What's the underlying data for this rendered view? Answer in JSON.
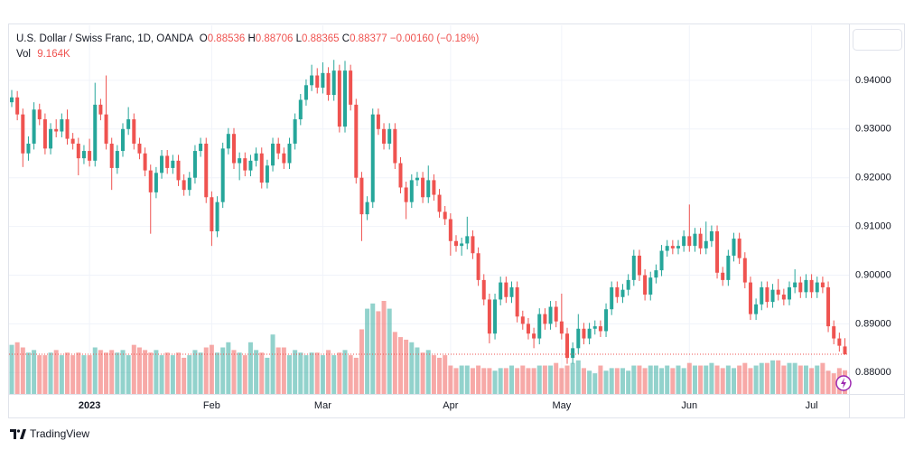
{
  "chart_data": {
    "type": "candlestick",
    "title": "U.S. Dollar / Swiss Franc, 1D, OANDA",
    "legend": {
      "open_label": "O",
      "open": 0.88536,
      "high_label": "H",
      "high": 0.88706,
      "low_label": "L",
      "low": 0.88365,
      "close_label": "C",
      "close": 0.88377,
      "change": {
        "value": -0.0016,
        "label": "−0.00160"
      },
      "change_percent": {
        "value": -0.18,
        "label": "(−0.18%)"
      },
      "volume_label": "Vol",
      "volume": {
        "value": 9.164,
        "label": "9.164K"
      }
    },
    "categories": [
      null,
      null,
      null,
      null,
      null,
      null,
      null,
      null,
      null,
      null,
      null,
      null,
      null,
      null,
      "2023",
      null,
      null,
      null,
      null,
      null,
      null,
      null,
      null,
      null,
      null,
      null,
      null,
      null,
      null,
      null,
      null,
      null,
      null,
      null,
      null,
      null,
      "Feb",
      null,
      null,
      null,
      null,
      null,
      null,
      null,
      null,
      null,
      null,
      null,
      null,
      null,
      null,
      null,
      null,
      null,
      null,
      null,
      "Mar",
      null,
      null,
      null,
      null,
      null,
      null,
      null,
      null,
      null,
      null,
      null,
      null,
      null,
      null,
      null,
      null,
      null,
      null,
      null,
      null,
      null,
      null,
      "Apr",
      null,
      null,
      null,
      null,
      null,
      null,
      null,
      null,
      null,
      null,
      null,
      null,
      null,
      null,
      null,
      null,
      null,
      null,
      null,
      "May",
      null,
      null,
      null,
      null,
      null,
      null,
      null,
      null,
      null,
      null,
      null,
      null,
      null,
      null,
      null,
      null,
      null,
      null,
      null,
      null,
      null,
      null,
      "Jun",
      null,
      null,
      null,
      null,
      null,
      null,
      null,
      null,
      null,
      null,
      null,
      null,
      null,
      null,
      null,
      null,
      null,
      null,
      null,
      null,
      null,
      "Jul",
      null,
      null,
      null,
      null,
      null,
      null
    ],
    "open": [
      0.9355,
      0.9365,
      0.933,
      0.925,
      0.927,
      0.934,
      0.932,
      0.926,
      0.93,
      0.9295,
      0.932,
      0.928,
      0.927,
      0.924,
      0.9255,
      0.9235,
      0.935,
      0.933,
      0.927,
      0.922,
      0.9255,
      0.93,
      0.932,
      0.927,
      0.925,
      0.9215,
      0.917,
      0.921,
      0.9245,
      0.922,
      0.9235,
      0.9195,
      0.9175,
      0.92,
      0.9255,
      0.927,
      0.916,
      0.909,
      0.915,
      0.926,
      0.929,
      0.923,
      0.924,
      0.9215,
      0.9235,
      0.925,
      0.919,
      0.9225,
      0.927,
      0.925,
      0.923,
      0.927,
      0.932,
      0.936,
      0.939,
      0.941,
      0.9385,
      0.9415,
      0.937,
      0.942,
      0.9305,
      0.942,
      0.935,
      0.92,
      0.9125,
      0.915,
      0.933,
      0.93,
      0.927,
      0.93,
      0.923,
      0.918,
      0.915,
      0.9195,
      0.92,
      0.916,
      0.9195,
      0.9165,
      0.913,
      0.9115,
      0.907,
      0.906,
      0.9065,
      0.908,
      0.9045,
      0.899,
      0.895,
      0.888,
      0.895,
      0.8985,
      0.8955,
      0.8975,
      0.8915,
      0.89,
      0.888,
      0.887,
      0.892,
      0.89,
      0.8935,
      0.8905,
      0.888,
      0.883,
      0.885,
      0.889,
      0.887,
      0.889,
      0.8895,
      0.8885,
      0.893,
      0.8975,
      0.8955,
      0.897,
      0.899,
      0.904,
      0.9,
      0.896,
      0.8995,
      0.901,
      0.905,
      0.906,
      0.9055,
      0.906,
      0.908,
      0.906,
      0.9085,
      0.9055,
      0.907,
      0.909,
      0.9005,
      0.899,
      0.904,
      0.9075,
      0.9035,
      0.8985,
      0.892,
      0.894,
      0.8975,
      0.8945,
      0.897,
      0.896,
      0.895,
      0.8975,
      0.8985,
      0.8965,
      0.899,
      0.8965,
      0.8985,
      0.8975,
      0.8895,
      0.887,
      0.88536
    ],
    "high": [
      0.938,
      0.9378,
      0.9342,
      0.9285,
      0.9355,
      0.9352,
      0.9332,
      0.9312,
      0.932,
      0.9332,
      0.934,
      0.9292,
      0.9282,
      0.9267,
      0.928,
      0.9395,
      0.9362,
      0.941,
      0.9282,
      0.9267,
      0.9312,
      0.9345,
      0.9332,
      0.9282,
      0.9262,
      0.9227,
      0.9222,
      0.9257,
      0.9257,
      0.9247,
      0.9247,
      0.9207,
      0.9212,
      0.9267,
      0.9282,
      0.9282,
      0.9172,
      0.9162,
      0.9272,
      0.9302,
      0.9302,
      0.9252,
      0.9252,
      0.9247,
      0.9262,
      0.9262,
      0.9237,
      0.9282,
      0.9282,
      0.9262,
      0.9282,
      0.9332,
      0.9372,
      0.9402,
      0.9432,
      0.9425,
      0.9437,
      0.9427,
      0.9442,
      0.9432,
      0.944,
      0.9432,
      0.9362,
      0.9212,
      0.9162,
      0.9342,
      0.9342,
      0.9312,
      0.9312,
      0.9312,
      0.9242,
      0.9192,
      0.9207,
      0.9212,
      0.9212,
      0.9225,
      0.9207,
      0.9177,
      0.9142,
      0.9127,
      0.9082,
      0.9077,
      0.912,
      0.9092,
      0.9057,
      0.9002,
      0.8962,
      0.8962,
      0.8997,
      0.8997,
      0.8987,
      0.8987,
      0.8927,
      0.8912,
      0.8892,
      0.8932,
      0.8932,
      0.8947,
      0.8947,
      0.8962,
      0.8892,
      0.8862,
      0.892,
      0.8902,
      0.8902,
      0.8907,
      0.8907,
      0.8942,
      0.8987,
      0.8987,
      0.8982,
      0.9002,
      0.9052,
      0.9052,
      0.9012,
      0.9007,
      0.9022,
      0.9062,
      0.9072,
      0.9072,
      0.9072,
      0.9092,
      0.9145,
      0.9097,
      0.9097,
      0.911,
      0.9102,
      0.9102,
      0.9017,
      0.9052,
      0.9087,
      0.9087,
      0.9047,
      0.8997,
      0.8952,
      0.8987,
      0.8987,
      0.8982,
      0.8992,
      0.8972,
      0.8987,
      0.9012,
      0.8997,
      0.9002,
      0.9002,
      0.8997,
      0.8997,
      0.8987,
      0.8907,
      0.8882,
      0.88706
    ],
    "low": [
      0.9345,
      0.9318,
      0.9222,
      0.9235,
      0.9258,
      0.9308,
      0.9248,
      0.9248,
      0.9283,
      0.9283,
      0.9268,
      0.9258,
      0.9205,
      0.9228,
      0.9223,
      0.9223,
      0.9318,
      0.9258,
      0.9175,
      0.9208,
      0.9243,
      0.9288,
      0.9258,
      0.9238,
      0.9203,
      0.9085,
      0.9158,
      0.9198,
      0.9208,
      0.9208,
      0.9183,
      0.9163,
      0.9163,
      0.9188,
      0.9243,
      0.9148,
      0.906,
      0.9078,
      0.9138,
      0.9248,
      0.9218,
      0.9195,
      0.9203,
      0.9203,
      0.9223,
      0.9178,
      0.9178,
      0.9213,
      0.9238,
      0.9218,
      0.9218,
      0.9258,
      0.9308,
      0.9348,
      0.9378,
      0.9373,
      0.9373,
      0.9358,
      0.9358,
      0.9293,
      0.9293,
      0.9338,
      0.9188,
      0.907,
      0.9113,
      0.9138,
      0.9288,
      0.9258,
      0.9258,
      0.9218,
      0.9168,
      0.9115,
      0.9138,
      0.9183,
      0.9148,
      0.9148,
      0.9153,
      0.9118,
      0.9103,
      0.904,
      0.9048,
      0.904,
      0.9053,
      0.9033,
      0.8978,
      0.8938,
      0.886,
      0.8868,
      0.8938,
      0.8943,
      0.8943,
      0.8903,
      0.8888,
      0.8868,
      0.885,
      0.8858,
      0.8888,
      0.8888,
      0.8893,
      0.8868,
      0.8818,
      0.8818,
      0.8838,
      0.8858,
      0.8858,
      0.8878,
      0.8873,
      0.8873,
      0.8918,
      0.8943,
      0.8943,
      0.8958,
      0.8978,
      0.8988,
      0.8948,
      0.8948,
      0.8983,
      0.8998,
      0.9038,
      0.9043,
      0.9043,
      0.9048,
      0.9048,
      0.9048,
      0.9043,
      0.9043,
      0.9058,
      0.8993,
      0.8978,
      0.8978,
      0.9028,
      0.9023,
      0.8973,
      0.8908,
      0.8908,
      0.8928,
      0.8933,
      0.8933,
      0.8948,
      0.8938,
      0.8938,
      0.8963,
      0.8953,
      0.8953,
      0.8953,
      0.8953,
      0.8963,
      0.8883,
      0.8858,
      0.8843,
      0.88365
    ],
    "close": [
      0.9365,
      0.933,
      0.925,
      0.927,
      0.934,
      0.932,
      0.926,
      0.93,
      0.9295,
      0.932,
      0.928,
      0.927,
      0.924,
      0.9255,
      0.9235,
      0.935,
      0.933,
      0.927,
      0.922,
      0.9255,
      0.93,
      0.932,
      0.927,
      0.925,
      0.9215,
      0.917,
      0.921,
      0.9245,
      0.922,
      0.9235,
      0.9195,
      0.9175,
      0.92,
      0.9255,
      0.927,
      0.916,
      0.909,
      0.915,
      0.926,
      0.929,
      0.923,
      0.924,
      0.9215,
      0.9235,
      0.925,
      0.919,
      0.9225,
      0.927,
      0.925,
      0.923,
      0.927,
      0.932,
      0.936,
      0.939,
      0.941,
      0.9385,
      0.9415,
      0.937,
      0.942,
      0.9305,
      0.942,
      0.935,
      0.92,
      0.9125,
      0.915,
      0.933,
      0.93,
      0.927,
      0.93,
      0.923,
      0.918,
      0.915,
      0.9195,
      0.92,
      0.916,
      0.9195,
      0.9165,
      0.913,
      0.9115,
      0.907,
      0.906,
      0.9065,
      0.908,
      0.9045,
      0.899,
      0.895,
      0.888,
      0.895,
      0.8985,
      0.8955,
      0.8975,
      0.8915,
      0.89,
      0.888,
      0.887,
      0.892,
      0.89,
      0.8935,
      0.8905,
      0.888,
      0.883,
      0.885,
      0.889,
      0.887,
      0.889,
      0.8895,
      0.8885,
      0.893,
      0.8975,
      0.8955,
      0.897,
      0.899,
      0.904,
      0.9,
      0.896,
      0.8995,
      0.901,
      0.905,
      0.906,
      0.9055,
      0.906,
      0.908,
      0.906,
      0.9085,
      0.9055,
      0.907,
      0.909,
      0.9005,
      0.899,
      0.904,
      0.9075,
      0.9035,
      0.8985,
      0.892,
      0.894,
      0.8975,
      0.8945,
      0.897,
      0.896,
      0.895,
      0.8975,
      0.8985,
      0.8965,
      0.899,
      0.8965,
      0.8985,
      0.8975,
      0.8895,
      0.887,
      0.8855,
      0.88377
    ],
    "volume": [
      19,
      20,
      18,
      16,
      17,
      15,
      15,
      16,
      17,
      15,
      16,
      15,
      16,
      15,
      15,
      18,
      17,
      16,
      17,
      16,
      17,
      15,
      19,
      18,
      17,
      16,
      17,
      15,
      16,
      15,
      16,
      14,
      15,
      17,
      16,
      18,
      19,
      16,
      18,
      20,
      17,
      16,
      15,
      20,
      17,
      16,
      14,
      23,
      18,
      18,
      15,
      17,
      16,
      15,
      16,
      16,
      15,
      17,
      15,
      16,
      17,
      15,
      14,
      25,
      33,
      35,
      32,
      36,
      33,
      24,
      22,
      21,
      20,
      18,
      16,
      17,
      15,
      14,
      15,
      11,
      10,
      11,
      11,
      10,
      11,
      10,
      10,
      9,
      10,
      10,
      11,
      10,
      11,
      10,
      10,
      11,
      11,
      11,
      12,
      10,
      11,
      12,
      13,
      10,
      9,
      8,
      11,
      9,
      10,
      10,
      10,
      9,
      11,
      11,
      10,
      11,
      11,
      10,
      11,
      10,
      11,
      10,
      12,
      11,
      11,
      11,
      12,
      11,
      10,
      11,
      10,
      11,
      12,
      10,
      11,
      12,
      12,
      13,
      13,
      11,
      12,
      12,
      11,
      11,
      10,
      11,
      12,
      9,
      8,
      10,
      9.164
    ],
    "ylim": [
      0.8756,
      0.9513
    ],
    "yticks": [
      {
        "value": 0.88,
        "label": "0.88000"
      },
      {
        "value": 0.89,
        "label": "0.89000"
      },
      {
        "value": 0.9,
        "label": "0.90000"
      },
      {
        "value": 0.91,
        "label": "0.91000"
      },
      {
        "value": 0.92,
        "label": "0.92000"
      },
      {
        "value": 0.93,
        "label": "0.93000"
      },
      {
        "value": 0.94,
        "label": "0.94000"
      }
    ],
    "up_color": "#26a69a",
    "down_color": "#ef5350",
    "grid": true
  },
  "footer": {
    "brand": "TradingView"
  }
}
